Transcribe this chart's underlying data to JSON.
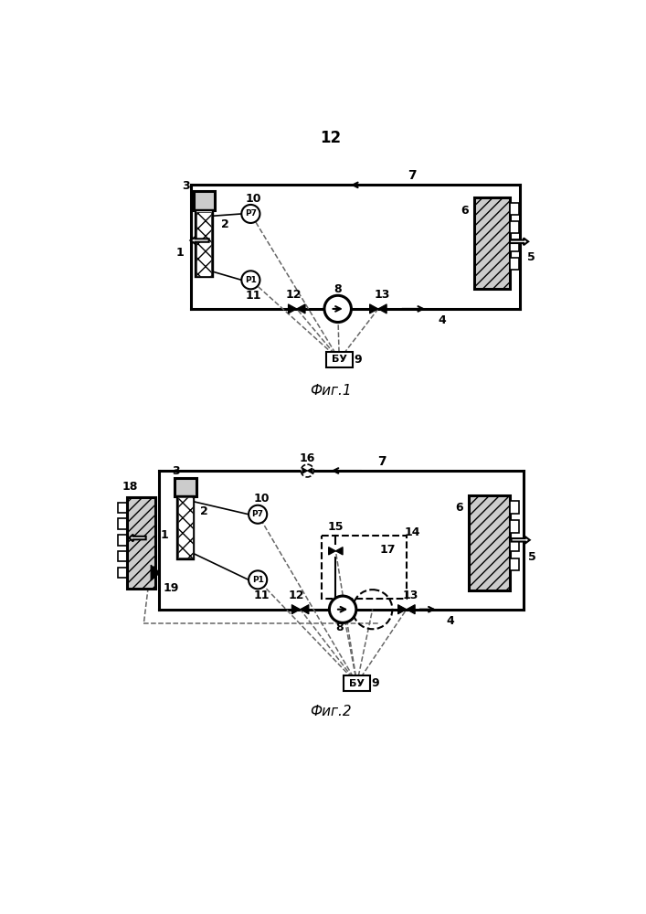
{
  "page_number": "12",
  "fig1_caption": "Фиг.1",
  "fig2_caption": "Фиг.2",
  "bg_color": "#ffffff",
  "line_color": "#000000",
  "dashed_color": "#666666",
  "lw_main": 2.2,
  "lw_thin": 1.2
}
